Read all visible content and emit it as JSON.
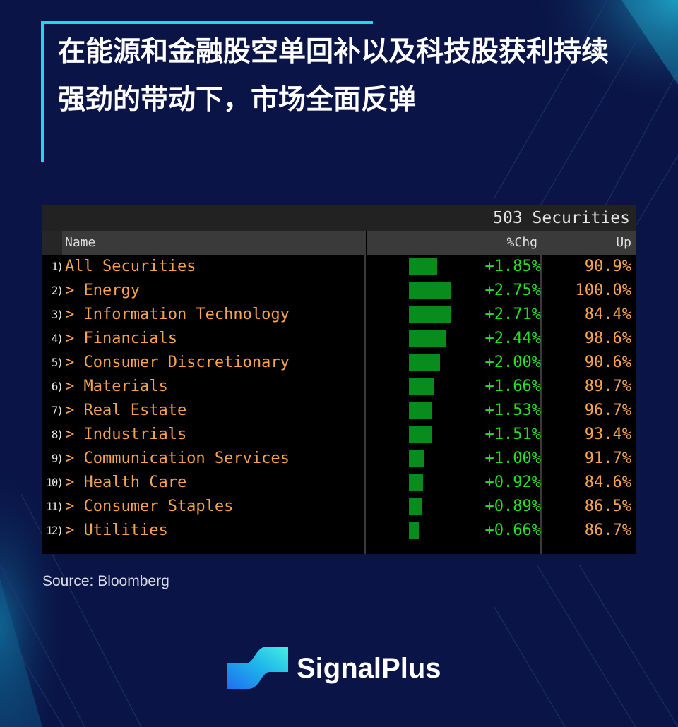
{
  "headline": "在能源和金融股空单回补以及科技股获利持续强劲的带动下，市场全面反弹",
  "terminal": {
    "securities_count": "503 Securities",
    "columns": {
      "name": "Name",
      "chg": "%Chg",
      "up": "Up"
    },
    "rows": [
      {
        "idx": "1)",
        "name": "All Securities",
        "chg": "+1.85%",
        "chg_value": 1.85,
        "up": "90.9%"
      },
      {
        "idx": "2)",
        "name": "> Energy",
        "chg": "+2.75%",
        "chg_value": 2.75,
        "up": "100.0%"
      },
      {
        "idx": "3)",
        "name": "> Information Technology",
        "chg": "+2.71%",
        "chg_value": 2.71,
        "up": "84.4%"
      },
      {
        "idx": "4)",
        "name": "> Financials",
        "chg": "+2.44%",
        "chg_value": 2.44,
        "up": "98.6%"
      },
      {
        "idx": "5)",
        "name": "> Consumer Discretionary",
        "chg": "+2.00%",
        "chg_value": 2.0,
        "up": "90.6%"
      },
      {
        "idx": "6)",
        "name": "> Materials",
        "chg": "+1.66%",
        "chg_value": 1.66,
        "up": "89.7%"
      },
      {
        "idx": "7)",
        "name": "> Real Estate",
        "chg": "+1.53%",
        "chg_value": 1.53,
        "up": "96.7%"
      },
      {
        "idx": "8)",
        "name": "> Industrials",
        "chg": "+1.51%",
        "chg_value": 1.51,
        "up": "93.4%"
      },
      {
        "idx": "9)",
        "name": "> Communication Services",
        "chg": "+1.00%",
        "chg_value": 1.0,
        "up": "91.7%"
      },
      {
        "idx": "10)",
        "name": "> Health Care",
        "chg": "+0.92%",
        "chg_value": 0.92,
        "up": "84.6%"
      },
      {
        "idx": "11)",
        "name": "> Consumer Staples",
        "chg": "+0.89%",
        "chg_value": 0.89,
        "up": "86.5%"
      },
      {
        "idx": "12)",
        "name": "> Utilities",
        "chg": "+0.66%",
        "chg_value": 0.66,
        "up": "86.7%"
      }
    ]
  },
  "source": "Source: Bloomberg",
  "brand": {
    "name": "SignalPlus",
    "logo_icon": "signalplus-logo-icon"
  },
  "colors": {
    "background": "#0a1446",
    "accent": "#25d5e8",
    "positive": "#24e024",
    "bar": "#0a8c1c",
    "name_text": "#f5a451"
  }
}
